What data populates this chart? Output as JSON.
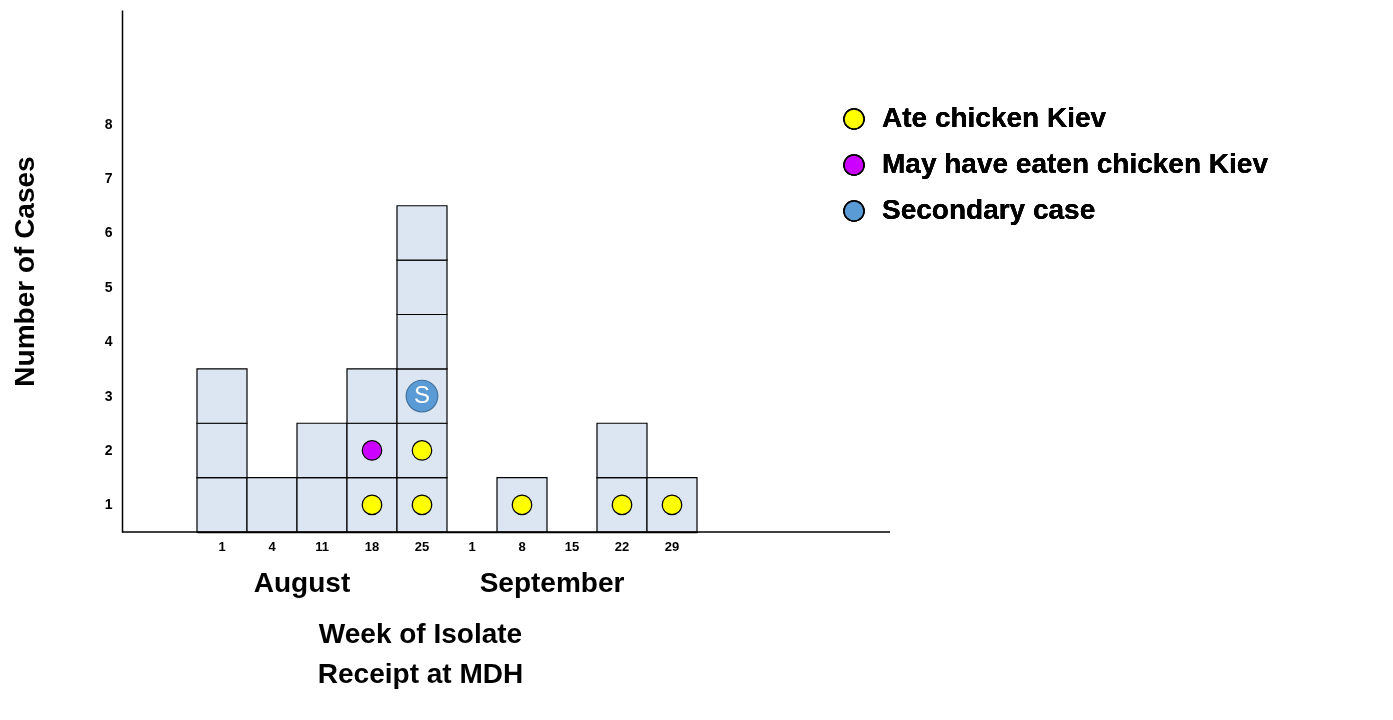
{
  "chart_data": {
    "type": "bar",
    "stacked": true,
    "xlabel": "Week of Isolate\nReceipt at MDH",
    "ylabel": "Number of Cases",
    "categories": [
      "1",
      "4",
      "11",
      "18",
      "25",
      "1",
      "8",
      "15",
      "22",
      "29"
    ],
    "ylim": [
      0,
      9.6
    ],
    "yticks": [
      {
        "value": 0.5,
        "label": "1"
      },
      {
        "value": 1.5,
        "label": "2"
      },
      {
        "value": 2.5,
        "label": "3"
      },
      {
        "value": 3.5,
        "label": "4"
      },
      {
        "value": 4.5,
        "label": "5"
      },
      {
        "value": 5.5,
        "label": "6"
      },
      {
        "value": 6.5,
        "label": "7"
      },
      {
        "value": 7.5,
        "label": "8"
      }
    ],
    "series": [
      {
        "type": "bar",
        "color": "#dce6f2",
        "values": [
          1,
          1,
          1,
          1,
          1,
          null,
          1,
          null,
          1,
          1
        ]
      },
      {
        "type": "bar",
        "color": "#dce6f2",
        "values": [
          1,
          null,
          1,
          1,
          1,
          null,
          null,
          null,
          1,
          null
        ]
      },
      {
        "type": "bar",
        "color": "#dce6f2",
        "values": [
          1,
          null,
          null,
          1,
          1,
          null,
          null,
          null,
          null,
          null
        ]
      },
      {
        "type": "bar",
        "color": "#dce6f2",
        "values": [
          null,
          null,
          null,
          null,
          1,
          null,
          null,
          null,
          null,
          null
        ]
      },
      {
        "type": "bar",
        "color": "#dce6f2",
        "values": [
          null,
          null,
          null,
          null,
          1,
          null,
          null,
          null,
          null,
          null
        ]
      },
      {
        "type": "bar",
        "color": "#dce6f2",
        "values": [
          null,
          null,
          null,
          null,
          1,
          null,
          null,
          null,
          null,
          null
        ]
      },
      {
        "type": "scatter",
        "name": "Ate chicken Kiev",
        "color": "#ffff00",
        "values": [
          null,
          null,
          null,
          0.5,
          0.5,
          null,
          0.5,
          null,
          0.5,
          0.5
        ]
      },
      {
        "type": "scatter",
        "color": "#ffff00",
        "values": [
          null,
          null,
          null,
          null,
          1.5,
          null,
          null,
          null,
          null,
          null
        ]
      },
      {
        "type": "scatter",
        "name": "May have eaten chicken Kiev",
        "color": "#cc00ff",
        "values": [
          null,
          null,
          null,
          1.5,
          null,
          null,
          null,
          null,
          null,
          null
        ]
      },
      {
        "type": "scatter",
        "name": "Secondary case",
        "color": "#5b9bd5",
        "values": [
          null,
          null,
          null,
          null,
          2.5,
          null,
          null,
          null,
          null,
          null
        ],
        "value_labels": [
          null,
          null,
          null,
          null,
          "S",
          null,
          null,
          null,
          null,
          null
        ]
      }
    ],
    "annotations": [
      "August",
      "September"
    ],
    "legend": "top right",
    "marker": "circle",
    "grid": false
  }
}
